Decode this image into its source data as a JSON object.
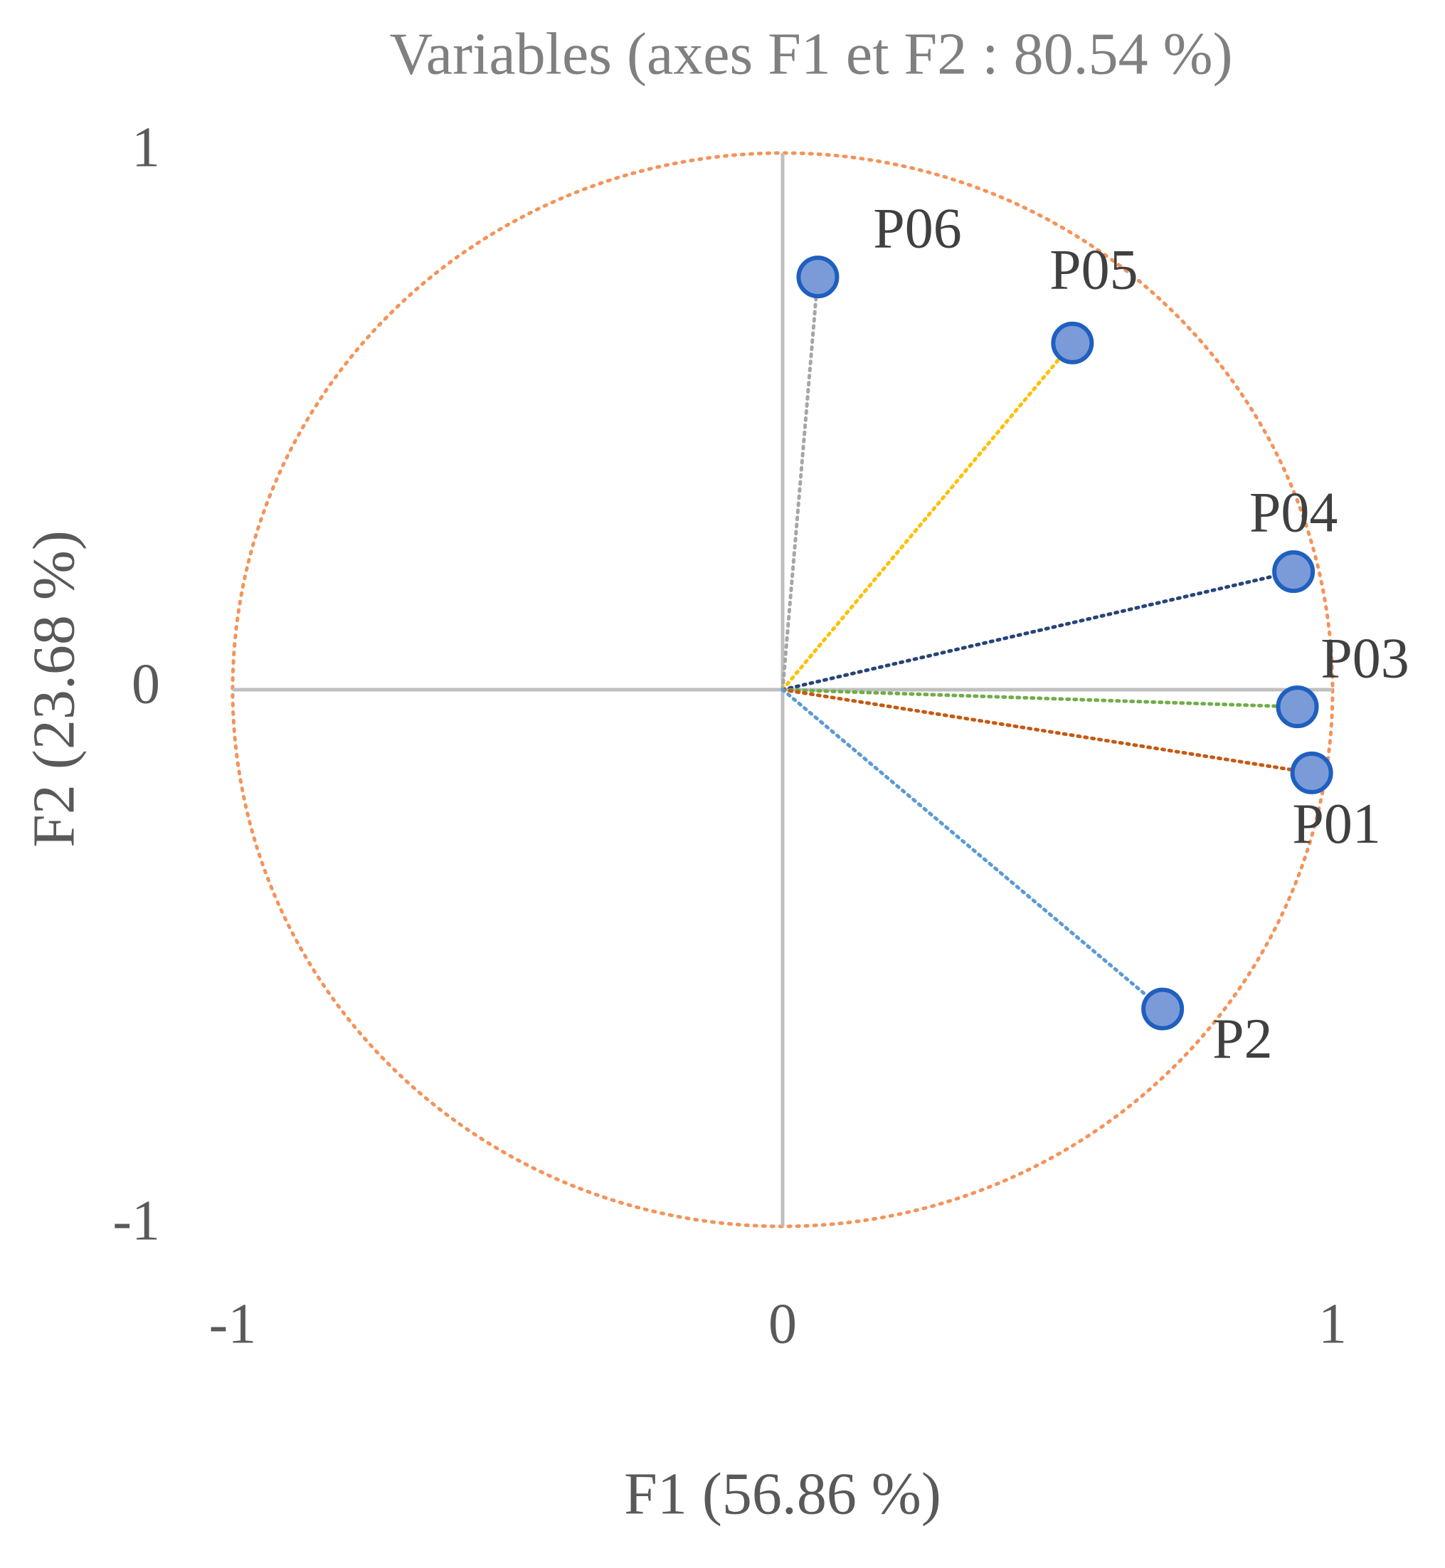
{
  "chart_data": {
    "type": "scatter",
    "title": "Variables (axes F1 et F2 : 80.54 %)",
    "xlabel": "F1 (56.86 %)",
    "ylabel": "F2 (23.68 %)",
    "xlim": [
      -1,
      1
    ],
    "ylim": [
      -1,
      1
    ],
    "xticks": [
      -1,
      0,
      1
    ],
    "yticks": [
      -1,
      0,
      1
    ],
    "marker_color": "#7b9bd8",
    "marker_edge": "#1f5fbf",
    "circle_color": "#f4935a",
    "series": [
      {
        "name": "P06",
        "color": "#a6a6a6",
        "x": [
          0.064
        ],
        "values": [
          0.769
        ]
      },
      {
        "name": "P05",
        "color": "#ffc000",
        "x": [
          0.527
        ],
        "values": [
          0.646
        ]
      },
      {
        "name": "P04",
        "color": "#264478",
        "x": [
          0.929
        ],
        "values": [
          0.22
        ]
      },
      {
        "name": "P03",
        "color": "#70ad47",
        "x": [
          0.936
        ],
        "values": [
          -0.032
        ]
      },
      {
        "name": "P01",
        "color": "#c55a11",
        "x": [
          0.962
        ],
        "values": [
          -0.155
        ]
      },
      {
        "name": "P2",
        "color": "#5b9bd5",
        "x": [
          0.691
        ],
        "values": [
          -0.595
        ]
      }
    ]
  }
}
